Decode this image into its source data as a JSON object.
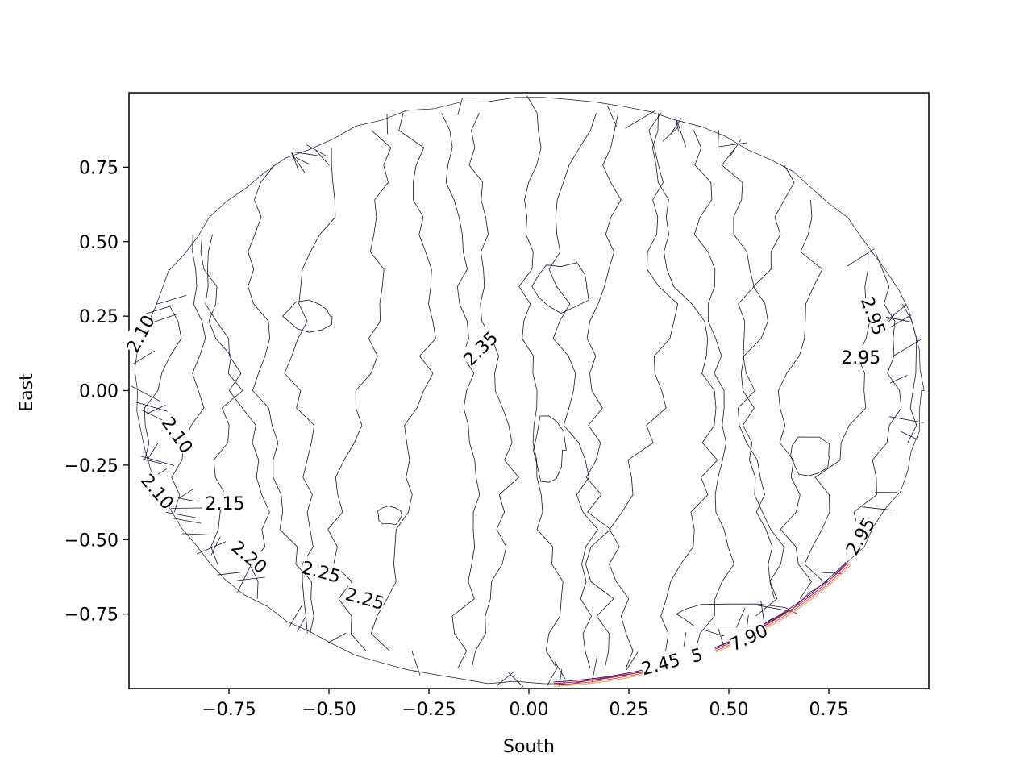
{
  "chart_data": {
    "type": "contour",
    "title": "",
    "xlabel": "South",
    "ylabel": "East",
    "xlim": [
      -1.0,
      1.0
    ],
    "ylim": [
      -1.0,
      1.0
    ],
    "xticks": [
      -0.75,
      -0.5,
      -0.25,
      0.0,
      0.25,
      0.5,
      0.75
    ],
    "xtick_labels": [
      "−0.75",
      "−0.50",
      "−0.25",
      "0.00",
      "0.25",
      "0.50",
      "0.75"
    ],
    "yticks": [
      0.75,
      0.5,
      0.25,
      0.0,
      -0.25,
      -0.5,
      -0.75
    ],
    "ytick_labels": [
      "0.75",
      "0.50",
      "0.25",
      "0.00",
      "−0.25",
      "−0.50",
      "−0.75"
    ],
    "grid": false,
    "domain": "unit disk",
    "contour_labels": [
      {
        "text": "2.10",
        "x": -0.97,
        "y": 0.19,
        "rotation": -62
      },
      {
        "text": "2.10",
        "x": -0.88,
        "y": -0.15,
        "rotation": 55
      },
      {
        "text": "2.10",
        "x": -0.93,
        "y": -0.34,
        "rotation": 50
      },
      {
        "text": "2.15",
        "x": -0.76,
        "y": -0.38,
        "rotation": 0
      },
      {
        "text": "2.20",
        "x": -0.7,
        "y": -0.56,
        "rotation": 40
      },
      {
        "text": "2.25",
        "x": -0.52,
        "y": -0.61,
        "rotation": 15
      },
      {
        "text": "2.25",
        "x": -0.41,
        "y": -0.7,
        "rotation": 15
      },
      {
        "text": "2.35",
        "x": -0.12,
        "y": 0.14,
        "rotation": -45
      },
      {
        "text": "2.95",
        "x": 0.86,
        "y": 0.25,
        "rotation": 70
      },
      {
        "text": "2.95",
        "x": 0.83,
        "y": 0.11,
        "rotation": 0
      },
      {
        "text": "2.95",
        "x": 0.83,
        "y": -0.49,
        "rotation": -60
      },
      {
        "text": "7.90",
        "x": 0.55,
        "y": -0.83,
        "rotation": -25
      },
      {
        "text": "2.45",
        "x": 0.33,
        "y": -0.92,
        "rotation": -15
      },
      {
        "text": "5",
        "x": 0.42,
        "y": -0.89,
        "rotation": -15
      }
    ],
    "contour_color": "#1b1030"
  }
}
